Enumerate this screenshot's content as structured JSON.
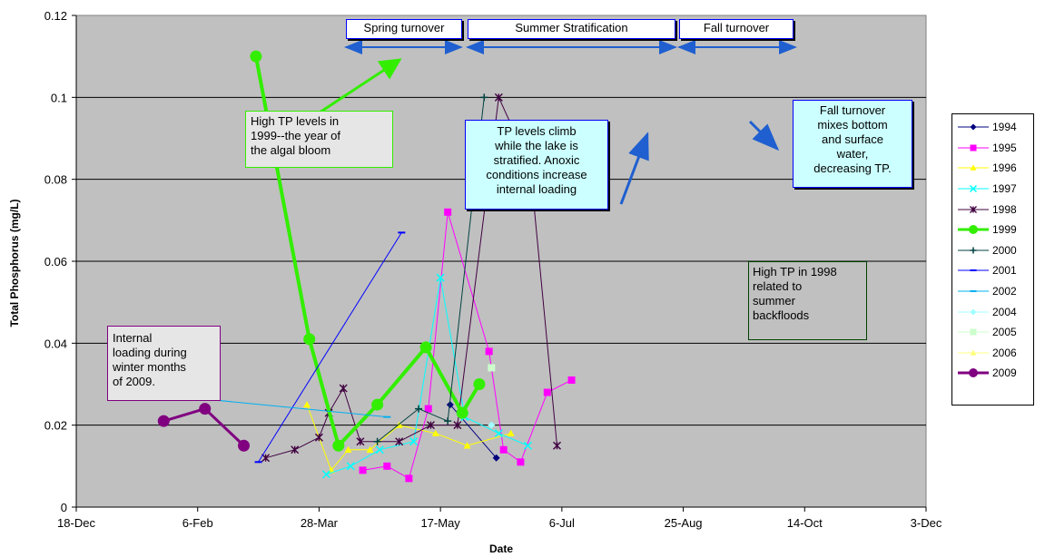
{
  "chart_data": {
    "type": "line",
    "xlabel": "Date",
    "ylabel": "Total Phosphorus (mg/L)",
    "x_ticks": [
      "18-Dec",
      "6-Feb",
      "28-Mar",
      "17-May",
      "6-Jul",
      "25-Aug",
      "14-Oct",
      "3-Dec"
    ],
    "y_ticks": [
      "0",
      "0.02",
      "0.04",
      "0.06",
      "0.08",
      "0.1",
      "0.12"
    ],
    "x_range_days": [
      0,
      350
    ],
    "ylim": [
      0,
      0.12
    ],
    "grid": "horizontal",
    "legend_position": "right",
    "x_unit_note": "x values are day offsets from 18-Dec",
    "series": [
      {
        "name": "1994",
        "color": "#000080",
        "marker": "diamond",
        "width": 1,
        "x": [
          154,
          173
        ],
        "y": [
          0.025,
          0.012
        ]
      },
      {
        "name": "1995",
        "color": "#ff00ff",
        "marker": "square",
        "width": 1,
        "x": [
          118,
          128,
          137,
          145,
          153,
          170,
          176,
          183,
          194,
          204
        ],
        "y": [
          0.009,
          0.01,
          0.007,
          0.024,
          0.072,
          0.038,
          0.014,
          0.011,
          0.028,
          0.031
        ]
      },
      {
        "name": "1996",
        "color": "#ffff00",
        "marker": "triangle",
        "width": 1,
        "x": [
          95,
          105,
          112,
          121,
          133,
          148,
          161,
          179
        ],
        "y": [
          0.025,
          0.009,
          0.014,
          0.014,
          0.02,
          0.018,
          0.015,
          0.018
        ]
      },
      {
        "name": "1997",
        "color": "#00ffff",
        "marker": "x",
        "width": 1,
        "x": [
          103,
          113,
          125,
          139,
          150,
          160,
          174,
          186
        ],
        "y": [
          0.008,
          0.01,
          0.014,
          0.016,
          0.056,
          0.022,
          0.018,
          0.015
        ]
      },
      {
        "name": "1998",
        "color": "#400040",
        "marker": "star",
        "width": 1,
        "x": [
          78,
          90,
          100,
          104,
          110,
          117,
          133,
          146,
          157,
          174,
          187,
          198
        ],
        "y": [
          0.012,
          0.014,
          0.017,
          0.023,
          0.029,
          0.016,
          0.016,
          0.02,
          0.02,
          0.1,
          0.083,
          0.015
        ]
      },
      {
        "name": "1999",
        "color": "#33ee00",
        "marker": "circle",
        "width": 4,
        "x": [
          74,
          96,
          108,
          124,
          144,
          159,
          166
        ],
        "y": [
          0.11,
          0.041,
          0.015,
          0.025,
          0.039,
          0.023,
          0.03
        ]
      },
      {
        "name": "2000",
        "color": "#004040",
        "marker": "plus",
        "width": 1,
        "x": [
          124,
          141,
          153,
          168
        ],
        "y": [
          0.016,
          0.024,
          0.021,
          0.1
        ]
      },
      {
        "name": "2001",
        "color": "#0000ff",
        "marker": "dash",
        "width": 1,
        "x": [
          75,
          134
        ],
        "y": [
          0.011,
          0.067
        ]
      },
      {
        "name": "2002",
        "color": "#00b0f0",
        "marker": "dash",
        "width": 1,
        "x": [
          42,
          128
        ],
        "y": [
          0.027,
          0.022
        ]
      },
      {
        "name": "2004",
        "color": "#a0ffff",
        "marker": "diamond",
        "width": 1,
        "x": [
          171
        ],
        "y": [
          0.02
        ]
      },
      {
        "name": "2005",
        "color": "#ccffcc",
        "marker": "square",
        "width": 1,
        "x": [
          171
        ],
        "y": [
          0.034
        ]
      },
      {
        "name": "2006",
        "color": "#ffff80",
        "marker": "triangle",
        "width": 1,
        "x": [],
        "y": []
      },
      {
        "name": "2009",
        "color": "#800080",
        "marker": "circle",
        "width": 3,
        "x": [
          36,
          53,
          69
        ],
        "y": [
          0.021,
          0.024,
          0.015
        ]
      }
    ]
  },
  "annotations": {
    "spring": "Spring turnover",
    "summer": "Summer Stratification",
    "fall": "Fall turnover",
    "tp1999": [
      "High TP levels in",
      "1999--the year of",
      "the algal bloom"
    ],
    "climb": [
      "TP levels climb",
      "while the lake is",
      "stratified. Anoxic",
      "conditions increase",
      "internal loading"
    ],
    "fallmix": [
      "Fall turnover",
      "mixes bottom",
      "and surface",
      "water,",
      "decreasing TP."
    ],
    "tp1998": [
      "High TP in 1998",
      "related to",
      "summer",
      "backfloods"
    ],
    "internal": [
      "Internal",
      "loading during",
      "winter months",
      "of 2009."
    ]
  },
  "colors": {
    "plot_bg": "#c0c0c0",
    "annotation_border_blue": "#0000ff",
    "arrow_blue": "#1f5fd0"
  }
}
